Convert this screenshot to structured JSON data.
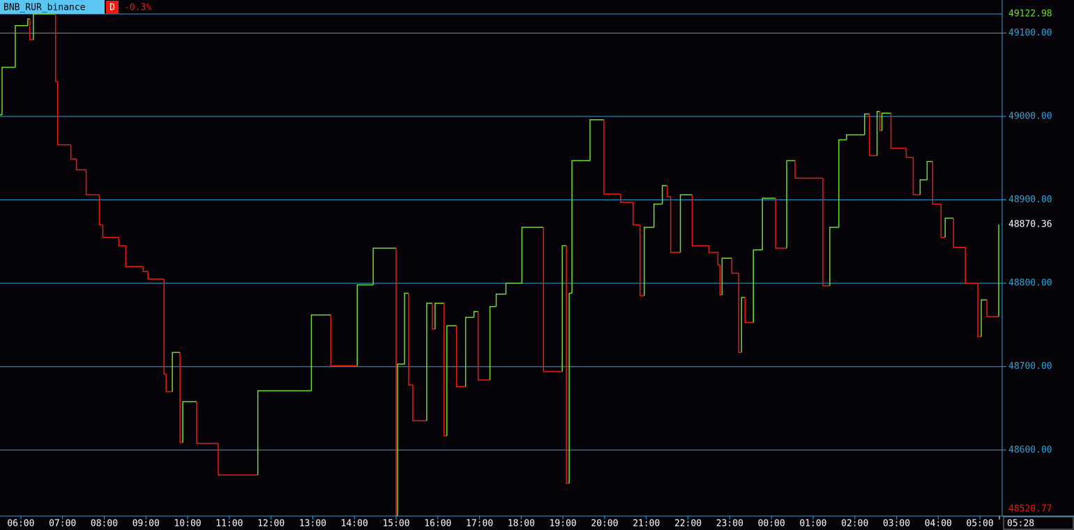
{
  "chart_data": {
    "type": "step",
    "symbol": "BNB_RUR_binance",
    "timeframe": "D",
    "change": "-0.3%",
    "x": [
      "05:30",
      "05:33",
      "05:52",
      "06:10",
      "06:13",
      "06:18",
      "06:50",
      "06:53",
      "07:12",
      "07:20",
      "07:34",
      "07:53",
      "07:58",
      "08:21",
      "08:31",
      "08:56",
      "09:03",
      "09:26",
      "09:29",
      "09:38",
      "09:49",
      "09:53",
      "10:13",
      "10:44",
      "11:41",
      "12:58",
      "13:26",
      "14:04",
      "14:27",
      "15:00",
      "15:02",
      "15:12",
      "15:18",
      "15:24",
      "15:44",
      "15:52",
      "15:56",
      "16:09",
      "16:13",
      "16:27",
      "16:40",
      "16:52",
      "16:58",
      "17:15",
      "17:24",
      "17:38",
      "18:01",
      "18:32",
      "18:59",
      "19:05",
      "19:09",
      "19:13",
      "19:39",
      "19:59",
      "20:23",
      "20:41",
      "20:51",
      "20:57",
      "21:11",
      "21:23",
      "21:30",
      "21:35",
      "21:49",
      "22:06",
      "22:30",
      "22:43",
      "22:46",
      "22:49",
      "23:03",
      "23:13",
      "23:17",
      "23:22",
      "23:34",
      "23:47",
      "00:06",
      "00:22",
      "00:34",
      "01:14",
      "01:24",
      "01:37",
      "01:48",
      "02:14",
      "02:21",
      "02:32",
      "02:36",
      "02:39",
      "02:52",
      "03:14",
      "03:24",
      "03:34",
      "03:44",
      "03:52",
      "04:04",
      "04:10",
      "04:22",
      "04:39",
      "04:57",
      "05:02",
      "05:10",
      "05:27"
    ],
    "values": [
      49002,
      49059,
      49109,
      49117,
      49092,
      49122.98,
      49042,
      48966,
      48949,
      48936,
      48906,
      48870,
      48855,
      48845,
      48820,
      48814,
      48805,
      48691,
      48670,
      48717,
      48609,
      48658,
      48608,
      48570,
      48671,
      48762,
      48701,
      48798,
      48842,
      48520.77,
      48703,
      48788,
      48678,
      48635,
      48776,
      48745,
      48776,
      48617,
      48749,
      48676,
      48759,
      48766,
      48684,
      48772,
      48787,
      48800,
      48867,
      48694,
      48845,
      48560,
      48788,
      48947,
      48996,
      48907,
      48897,
      48870,
      48785,
      48867,
      48895,
      48917,
      48904,
      48837,
      48906,
      48845,
      48837,
      48822,
      48786,
      48830,
      48812,
      48717,
      48783,
      48753,
      48840,
      48902,
      48842,
      48947,
      48926,
      48797,
      48867,
      48972,
      48978,
      49003,
      48953,
      49006,
      48983,
      49004,
      48962,
      48951,
      48906,
      48924,
      48946,
      48895,
      48855,
      48878,
      48843,
      48800,
      48736,
      48780,
      48760,
      48870.36
    ],
    "up_color": "#6ee02a",
    "down_color": "#ee1a12",
    "xlim": [
      "05:30",
      "05:30"
    ],
    "xticks": [
      "06:00",
      "07:00",
      "08:00",
      "09:00",
      "10:00",
      "11:00",
      "12:00",
      "13:00",
      "14:00",
      "15:00",
      "16:00",
      "17:00",
      "18:00",
      "19:00",
      "20:00",
      "21:00",
      "22:00",
      "23:00",
      "00:00",
      "01:00",
      "02:00",
      "03:00",
      "04:00",
      "05:00"
    ],
    "current_time": "05:28",
    "ylim": [
      48520.77,
      49139.7
    ],
    "yticks": [
      {
        "value": 48600,
        "label": "48600.00"
      },
      {
        "value": 48700,
        "label": "48700.00"
      },
      {
        "value": 48800,
        "label": "48800.00"
      },
      {
        "value": 48900,
        "label": "48900.00"
      },
      {
        "value": 49000,
        "label": "49000.00"
      },
      {
        "value": 49100,
        "label": "49100.00"
      }
    ],
    "grid": true
  }
}
